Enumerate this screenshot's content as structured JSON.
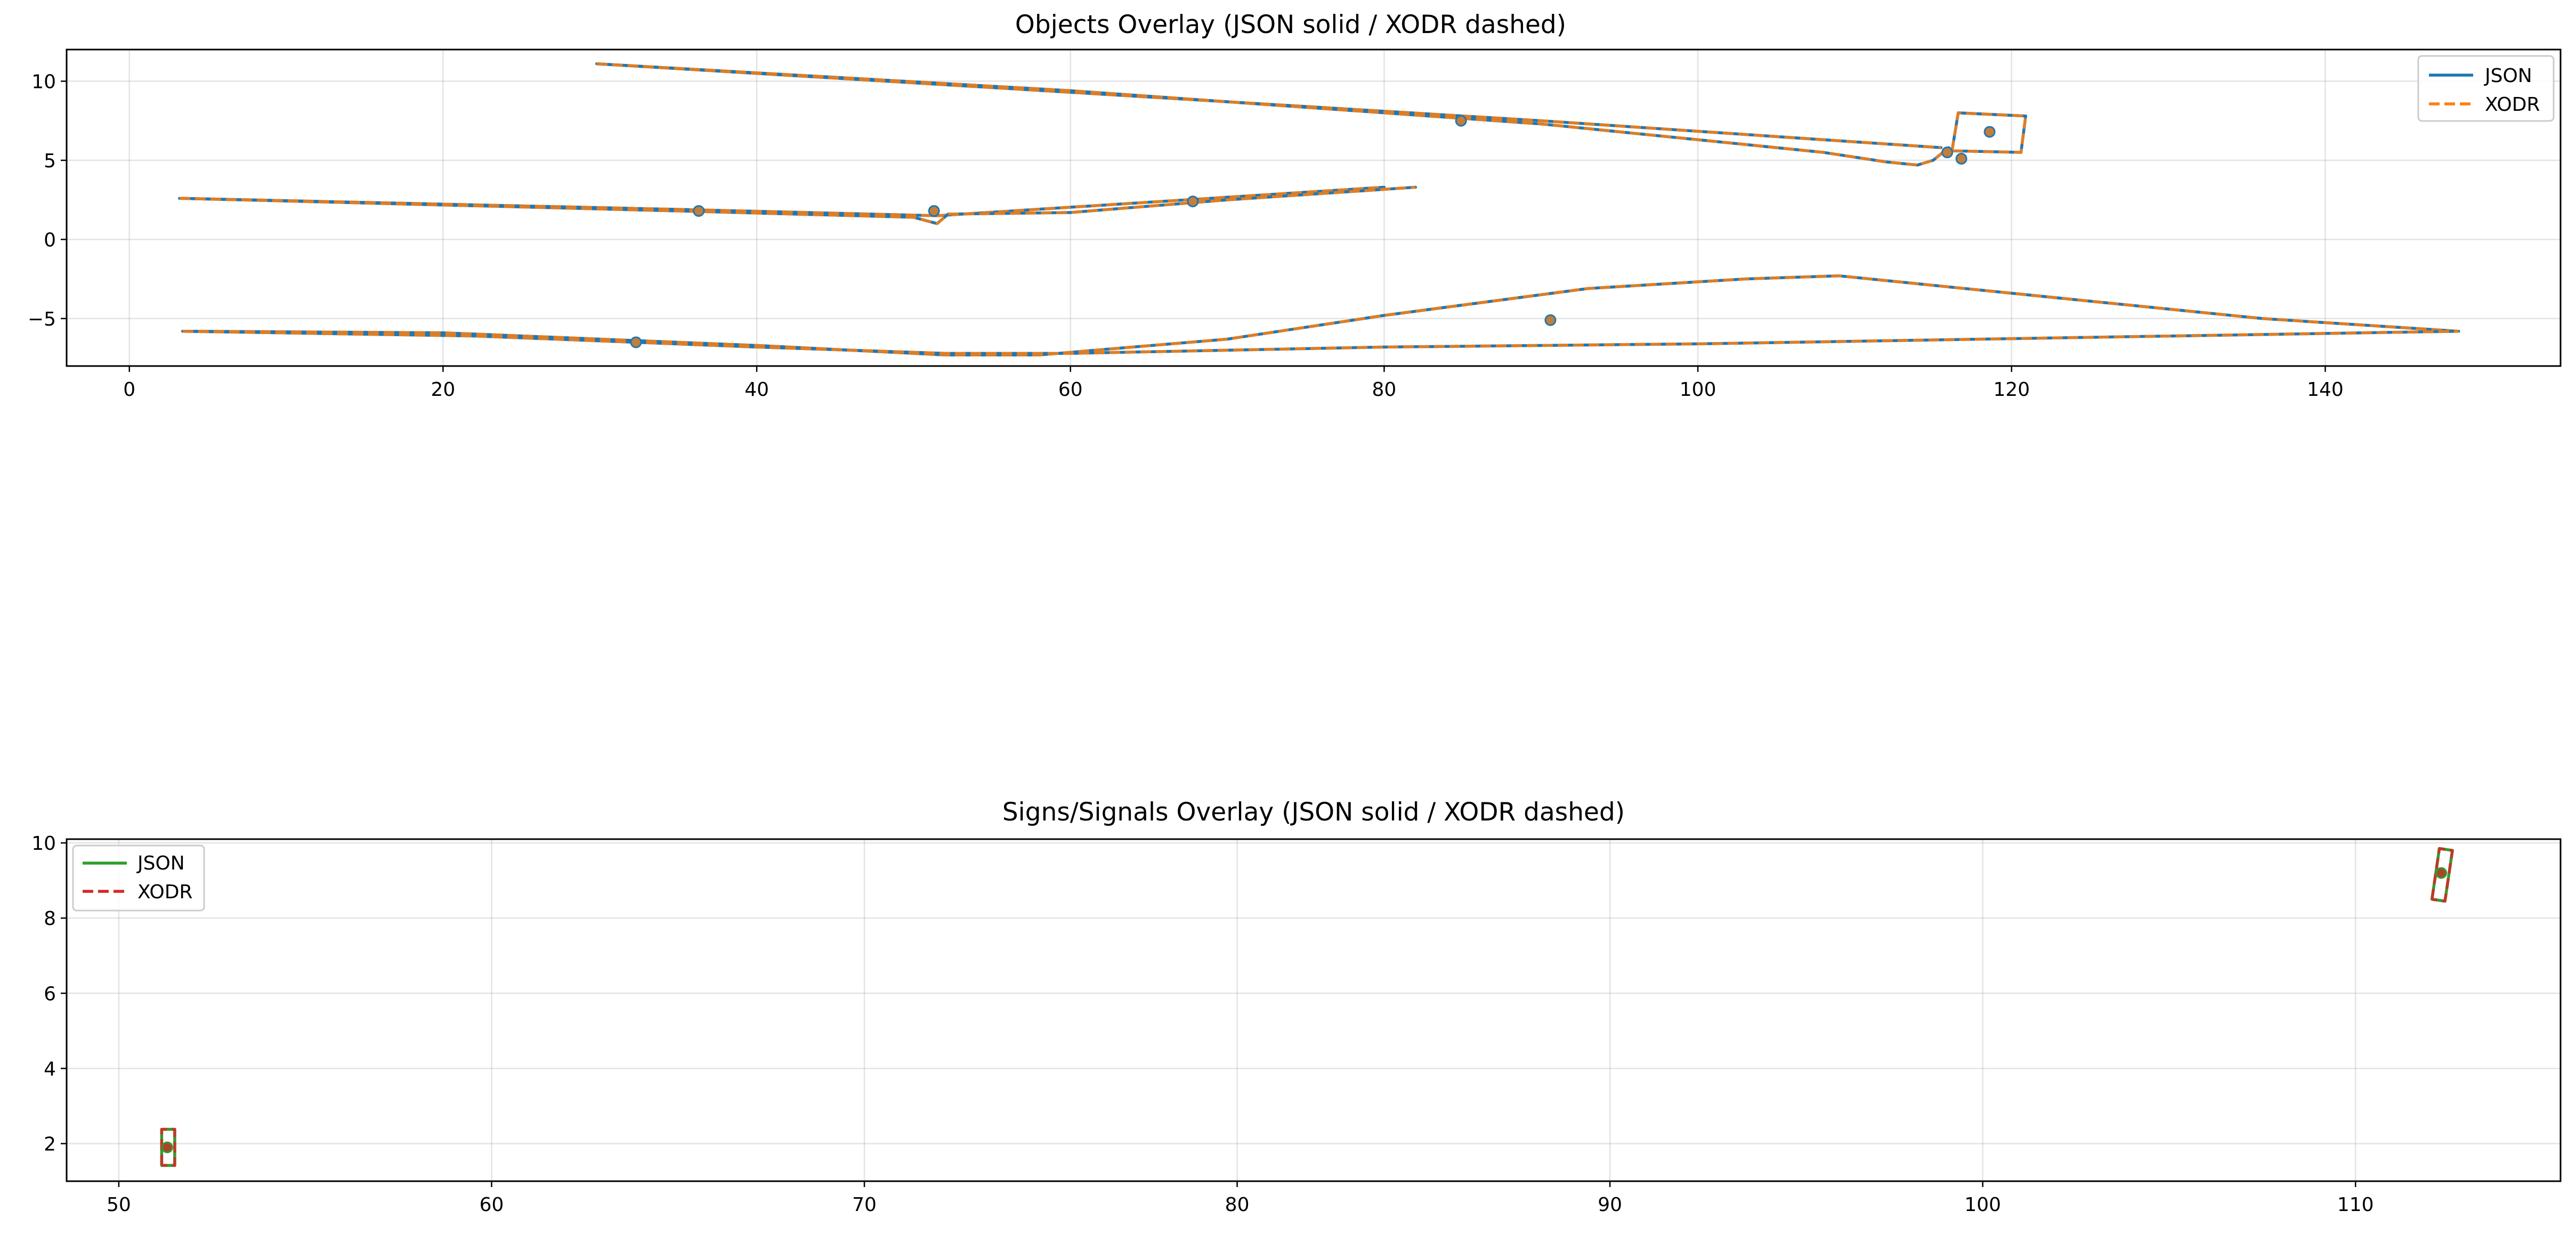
{
  "chart_data": [
    {
      "type": "line",
      "title": "Objects Overlay (JSON solid / XODR dashed)",
      "xlabel": "",
      "ylabel": "",
      "xlim": [
        -4,
        155
      ],
      "ylim": [
        -8,
        12
      ],
      "xticks": [
        0,
        20,
        40,
        60,
        80,
        100,
        120,
        140
      ],
      "yticks": [
        -5,
        0,
        5,
        10
      ],
      "grid": true,
      "legend_position": "top-right",
      "legend": [
        {
          "label": "JSON",
          "color": "#1f77b4",
          "style": "solid"
        },
        {
          "label": "XODR",
          "color": "#ff7f0e",
          "style": "dashed"
        }
      ],
      "outline_color": "#1f77b4",
      "overlay_color": "#ff7f0e",
      "polylines": [
        [
          [
            29.8,
            11.1
          ],
          [
            60,
            9.3
          ],
          [
            90,
            7.5
          ],
          [
            115.5,
            5.8
          ]
        ],
        [
          [
            29.8,
            11.1
          ],
          [
            60,
            9.4
          ],
          [
            90,
            7.3
          ],
          [
            108,
            5.5
          ],
          [
            112,
            4.9
          ],
          [
            114,
            4.7
          ],
          [
            115,
            5.0
          ],
          [
            116,
            5.8
          ]
        ],
        [
          [
            116.2,
            5.6
          ],
          [
            116.6,
            8.0
          ],
          [
            120.9,
            7.8
          ],
          [
            120.6,
            5.5
          ],
          [
            116.2,
            5.6
          ]
        ],
        [
          [
            3.2,
            2.6
          ],
          [
            35,
            1.9
          ],
          [
            51.5,
            1.5
          ],
          [
            80,
            3.3
          ]
        ],
        [
          [
            3.2,
            2.6
          ],
          [
            35,
            1.8
          ],
          [
            50,
            1.4
          ],
          [
            51.5,
            1.0
          ],
          [
            52.2,
            1.6
          ]
        ],
        [
          [
            52.2,
            1.6
          ],
          [
            60,
            1.7
          ],
          [
            70,
            2.5
          ],
          [
            82,
            3.3
          ]
        ],
        [
          [
            3.4,
            -5.8
          ],
          [
            20,
            -5.9
          ],
          [
            40,
            -6.7
          ],
          [
            52,
            -7.3
          ],
          [
            58,
            -7.3
          ],
          [
            70,
            -6.3
          ],
          [
            80,
            -4.8
          ],
          [
            93,
            -3.1
          ],
          [
            103,
            -2.5
          ],
          [
            109,
            -2.3
          ],
          [
            136,
            -5.0
          ],
          [
            148.5,
            -5.8
          ]
        ],
        [
          [
            3.4,
            -5.8
          ],
          [
            22,
            -6.1
          ],
          [
            40,
            -6.8
          ],
          [
            52,
            -7.2
          ],
          [
            60,
            -7.2
          ],
          [
            80,
            -6.8
          ],
          [
            100,
            -6.6
          ],
          [
            148.5,
            -5.8
          ]
        ]
      ],
      "points": [
        [
          36.3,
          1.8
        ],
        [
          51.3,
          1.8
        ],
        [
          67.8,
          2.4
        ],
        [
          84.9,
          7.5
        ],
        [
          115.9,
          5.5
        ],
        [
          116.8,
          5.1
        ],
        [
          118.6,
          6.8
        ],
        [
          32.3,
          -6.5
        ],
        [
          90.6,
          -5.1
        ]
      ]
    },
    {
      "type": "line",
      "title": "Signs/Signals Overlay (JSON solid / XODR dashed)",
      "xlabel": "",
      "ylabel": "",
      "xlim": [
        48.6,
        115.5
      ],
      "ylim": [
        1.0,
        10.1
      ],
      "xticks": [
        50,
        60,
        70,
        80,
        90,
        100,
        110
      ],
      "yticks": [
        2,
        4,
        6,
        8,
        10
      ],
      "grid": true,
      "legend_position": "top-left",
      "legend": [
        {
          "label": "JSON",
          "color": "#2ca02c",
          "style": "solid"
        },
        {
          "label": "XODR",
          "color": "#d62728",
          "style": "dashed"
        }
      ],
      "outline_color": "#2ca02c",
      "overlay_color": "#d62728",
      "polylines": [
        [
          [
            51.15,
            1.42
          ],
          [
            51.15,
            2.38
          ],
          [
            51.5,
            2.38
          ],
          [
            51.5,
            1.42
          ],
          [
            51.15,
            1.42
          ]
        ],
        [
          [
            112.05,
            8.5
          ],
          [
            112.25,
            9.85
          ],
          [
            112.6,
            9.8
          ],
          [
            112.4,
            8.45
          ],
          [
            112.05,
            8.5
          ]
        ]
      ],
      "points": [
        [
          51.3,
          1.9
        ],
        [
          112.3,
          9.2
        ]
      ]
    }
  ]
}
